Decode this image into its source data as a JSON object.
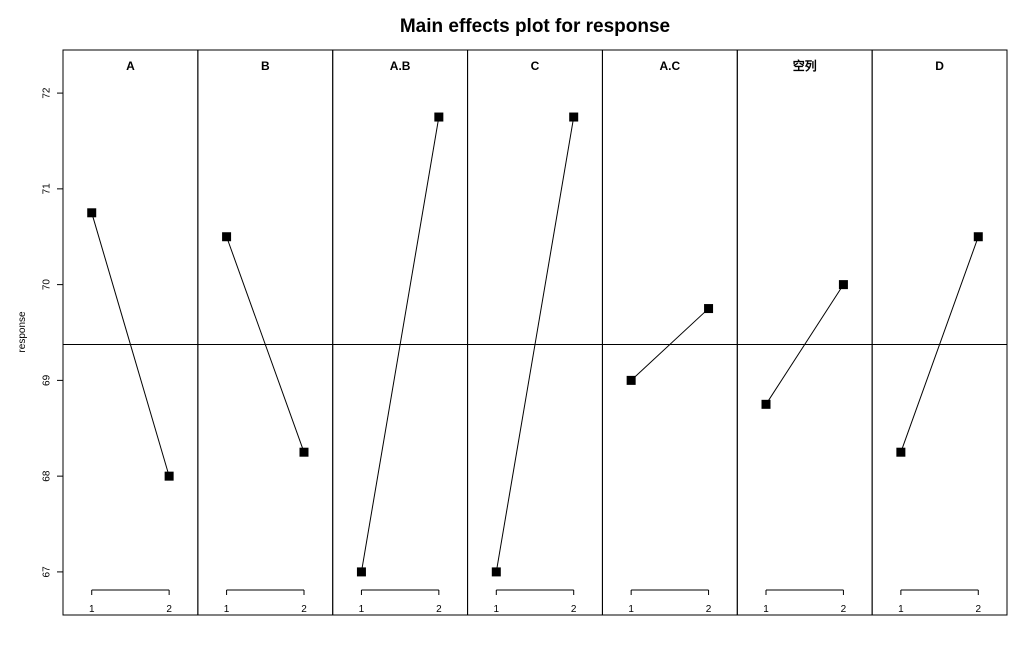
{
  "chart_data": {
    "type": "line",
    "title": "Main effects plot for response",
    "ylabel": "response",
    "ylim": [
      66.55,
      72.45
    ],
    "yticks": [
      67,
      68,
      69,
      70,
      71,
      72
    ],
    "grand_mean": 69.375,
    "levels": [
      "1",
      "2"
    ],
    "panels": [
      {
        "name": "A",
        "values": [
          70.75,
          68.0
        ]
      },
      {
        "name": "B",
        "values": [
          70.5,
          68.25
        ]
      },
      {
        "name": "A.B",
        "values": [
          67.0,
          71.75
        ]
      },
      {
        "name": "C",
        "values": [
          67.0,
          71.75
        ]
      },
      {
        "name": "A.C",
        "values": [
          69.0,
          69.75
        ]
      },
      {
        "name": "空列",
        "values": [
          68.75,
          70.0
        ]
      },
      {
        "name": "D",
        "values": [
          68.25,
          70.5
        ]
      }
    ],
    "grid": false,
    "legend": "none",
    "colors": {
      "line": "#000000",
      "point": "#000000",
      "frame": "#000000"
    }
  }
}
